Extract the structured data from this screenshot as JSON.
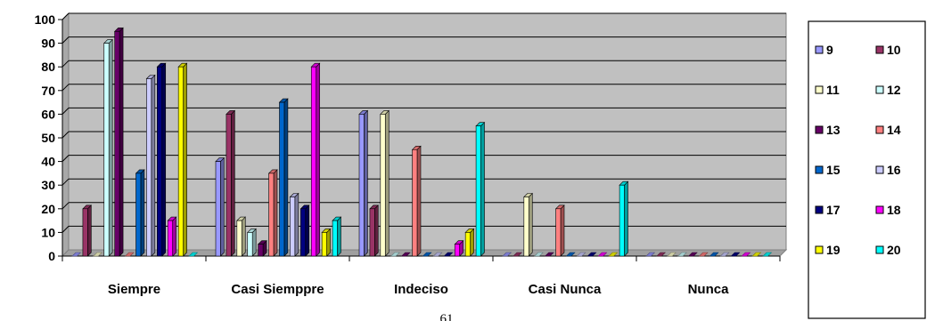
{
  "chart_data": {
    "type": "bar",
    "style": "3d-clustered",
    "categories": [
      "Siempre",
      "Casi Siemppre",
      "Indeciso",
      "Casi Nunca",
      "Nunca"
    ],
    "ylim": [
      0,
      100
    ],
    "yticks": [
      0,
      10,
      20,
      30,
      40,
      50,
      60,
      70,
      80,
      90,
      100
    ],
    "grid": true,
    "legend_position": "right",
    "plot_background": "#C0C0C0",
    "series": [
      {
        "name": "9",
        "color": "#9999FF",
        "values": [
          0,
          40,
          60,
          0,
          0
        ]
      },
      {
        "name": "10",
        "color": "#993366",
        "values": [
          20,
          60,
          20,
          0,
          0
        ]
      },
      {
        "name": "11",
        "color": "#FFFFCC",
        "values": [
          0,
          15,
          60,
          25,
          0
        ]
      },
      {
        "name": "12",
        "color": "#CCFFFF",
        "values": [
          90,
          10,
          0,
          0,
          0
        ]
      },
      {
        "name": "13",
        "color": "#660066",
        "values": [
          95,
          5,
          0,
          0,
          0
        ]
      },
      {
        "name": "14",
        "color": "#FF8080",
        "values": [
          0,
          35,
          45,
          20,
          0
        ]
      },
      {
        "name": "15",
        "color": "#0066CC",
        "values": [
          35,
          65,
          0,
          0,
          0
        ]
      },
      {
        "name": "16",
        "color": "#CCCCFF",
        "values": [
          75,
          25,
          0,
          0,
          0
        ]
      },
      {
        "name": "17",
        "color": "#000080",
        "values": [
          80,
          20,
          0,
          0,
          0
        ]
      },
      {
        "name": "18",
        "color": "#FF00FF",
        "values": [
          15,
          80,
          5,
          0,
          0
        ]
      },
      {
        "name": "19",
        "color": "#FFFF00",
        "values": [
          80,
          10,
          10,
          0,
          0
        ]
      },
      {
        "name": "20",
        "color": "#00FFFF",
        "values": [
          0,
          15,
          55,
          30,
          0
        ]
      }
    ]
  },
  "page": {
    "page_number": "61"
  }
}
